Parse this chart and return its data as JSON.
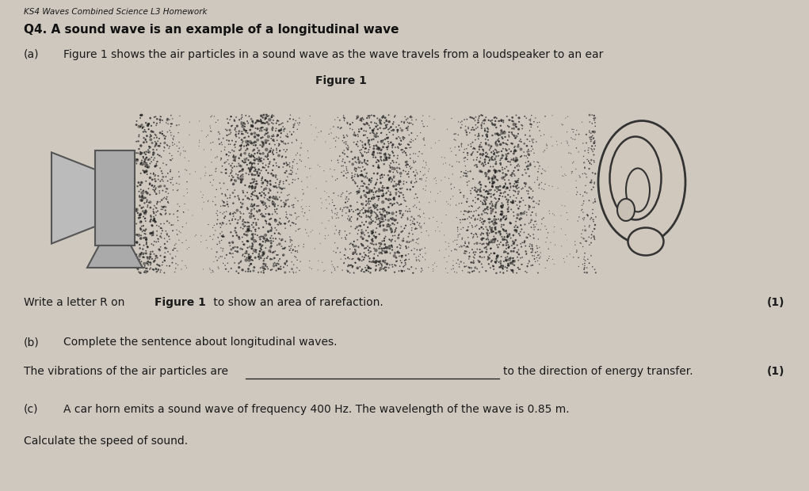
{
  "background_color": "#cec8bf",
  "header_text": "KS4 Waves Combined Science L3 Homework",
  "q4_text": "Q4. A sound wave is an example of a longitudinal wave",
  "qa_label": "(a)",
  "qa_text": "Figure 1 shows the air particles in a sound wave as the wave travels from a loudspeaker to an ear",
  "figure_label": "Figure 1",
  "write_label": "Write a letter R on ",
  "write_bold": "Figure 1",
  "write_end": " to show an area of rarefaction.",
  "mark1": "(1)",
  "qb_label": "(b)",
  "qb_text": "Complete the sentence about longitudinal waves.",
  "vibration_text": "The vibrations of the air particles are",
  "direction_text": "to the direction of energy transfer.",
  "mark2": "(1)",
  "qc_label": "(c)",
  "qc_text": "A car horn emits a sound wave of frequency 400 Hz. The wavelength of the wave is 0.85 m.",
  "calc_text": "Calculate the speed of sound.",
  "text_color": "#1a1a1a",
  "n_dots": 4000,
  "n_cycles": 3.8,
  "dot_size_small": 1.5,
  "dot_size_large": 4.0
}
